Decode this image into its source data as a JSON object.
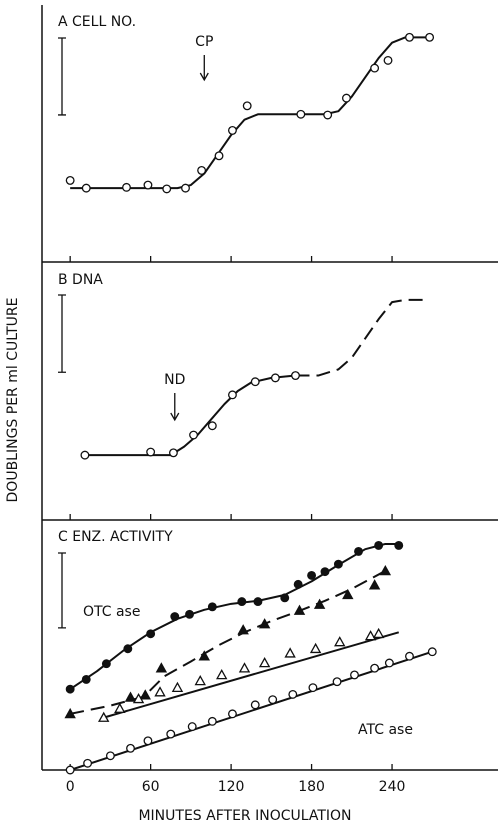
{
  "chart_data": [
    {
      "type": "scatter",
      "title": "A CELL NO.",
      "ylim": [
        0,
        3.34
      ],
      "scale_bar": 1,
      "annotations": [
        "CP"
      ],
      "series": [
        {
          "color": "#111",
          "marker": "open-circle",
          "x": [
            0,
            12,
            42,
            58,
            72,
            86,
            98,
            111,
            121,
            132,
            172,
            192,
            206,
            227,
            237,
            253,
            268
          ],
          "values": [
            1.06,
            0.96,
            0.97,
            1.0,
            0.95,
            0.96,
            1.19,
            1.38,
            1.71,
            2.03,
            1.92,
            1.91,
            2.13,
            2.52,
            2.62,
            2.92,
            2.92
          ],
          "fits": [
            {
              "style": "solid",
              "x": [
                0,
                80,
                90,
                100,
                110,
                120,
                130,
                140,
                190,
                200,
                210,
                220,
                230,
                240,
                250,
                268
              ],
              "values": [
                0.96,
                0.96,
                1.0,
                1.15,
                1.4,
                1.65,
                1.85,
                1.92,
                1.92,
                1.96,
                2.15,
                2.4,
                2.65,
                2.85,
                2.92,
                2.92
              ]
            }
          ]
        }
      ]
    },
    {
      "type": "scatter",
      "title": "B DNA",
      "ylim": [
        0,
        3.34
      ],
      "scale_bar": 1,
      "ylabel": "DOUBLINGS PER ml CULTURE",
      "annotations": [
        "ND"
      ],
      "series": [
        {
          "color": "#111",
          "marker": "open-circle",
          "x": [
            11,
            60,
            77,
            92,
            106,
            121,
            138,
            153,
            168
          ],
          "values": [
            0.84,
            0.88,
            0.87,
            1.1,
            1.22,
            1.62,
            1.79,
            1.84,
            1.87
          ],
          "fits": [
            {
              "style": "solid",
              "x": [
                11,
                75,
                85,
                95,
                105,
                115,
                125,
                135,
                150,
                168
              ],
              "values": [
                0.84,
                0.84,
                0.95,
                1.1,
                1.3,
                1.5,
                1.67,
                1.78,
                1.84,
                1.87
              ]
            },
            {
              "style": "dashed",
              "x": [
                168,
                185,
                200,
                210,
                220,
                230,
                240,
                250,
                268
              ],
              "values": [
                1.87,
                1.87,
                1.95,
                2.1,
                2.35,
                2.6,
                2.82,
                2.85,
                2.85
              ]
            }
          ]
        }
      ]
    },
    {
      "type": "scatter",
      "title": "C ENZ. ACTIVITY",
      "ylim": [
        0,
        3.34
      ],
      "scale_bar": 1,
      "xlabel": "MINUTES AFTER INOCULATION",
      "xlim": [
        -21,
        319
      ],
      "xticks": [
        0,
        60,
        120,
        180,
        240
      ],
      "series": [
        {
          "name": "OTC ase",
          "color": "#111",
          "marker": "filled-circle",
          "x": [
            0,
            12,
            27,
            43,
            60,
            78,
            89,
            106,
            128,
            140,
            160,
            170,
            180,
            190,
            200,
            215,
            230,
            245
          ],
          "values": [
            1.08,
            1.21,
            1.42,
            1.62,
            1.82,
            2.05,
            2.08,
            2.18,
            2.25,
            2.25,
            2.3,
            2.48,
            2.6,
            2.65,
            2.75,
            2.92,
            3.0,
            3.0
          ],
          "fits": [
            {
              "style": "solid",
              "x": [
                0,
                20,
                40,
                60,
                80,
                100,
                120,
                140,
                160,
                180,
                200,
                220,
                235,
                245
              ],
              "values": [
                1.08,
                1.32,
                1.6,
                1.84,
                2.02,
                2.14,
                2.22,
                2.26,
                2.34,
                2.52,
                2.74,
                2.95,
                3.02,
                3.02
              ]
            }
          ]
        },
        {
          "color": "#111",
          "marker": "filled-triangle",
          "x": [
            0,
            45,
            56,
            68,
            100,
            129,
            145,
            171,
            186,
            207,
            227,
            235
          ],
          "values": [
            0.75,
            0.97,
            1.0,
            1.36,
            1.52,
            1.87,
            1.95,
            2.13,
            2.21,
            2.34,
            2.47,
            2.66
          ],
          "fits": [
            {
              "style": "dashed",
              "x": [
                0,
                30,
                55,
                70,
                90,
                110,
                130,
                150,
                170,
                190,
                210,
                235
              ],
              "values": [
                0.75,
                0.86,
                0.98,
                1.25,
                1.45,
                1.66,
                1.84,
                1.99,
                2.12,
                2.26,
                2.42,
                2.66
              ]
            }
          ]
        },
        {
          "color": "#111",
          "marker": "open-triangle",
          "x": [
            25,
            37,
            51,
            67,
            80,
            97,
            113,
            130,
            145,
            164,
            183,
            201,
            224,
            230
          ],
          "values": [
            0.7,
            0.82,
            0.95,
            1.04,
            1.1,
            1.19,
            1.27,
            1.36,
            1.43,
            1.56,
            1.62,
            1.71,
            1.79,
            1.82
          ],
          "fits": [
            {
              "style": "solid",
              "x": [
                25,
                245
              ],
              "values": [
                0.7,
                1.84
              ]
            }
          ]
        },
        {
          "name": "ATC ase",
          "color": "#111",
          "marker": "open-circle",
          "x": [
            0,
            13,
            30,
            45,
            58,
            75,
            91,
            106,
            121,
            138,
            151,
            166,
            181,
            199,
            212,
            227,
            238,
            253,
            270
          ],
          "values": [
            0,
            0.09,
            0.19,
            0.29,
            0.39,
            0.48,
            0.58,
            0.65,
            0.75,
            0.87,
            0.94,
            1.01,
            1.1,
            1.18,
            1.27,
            1.36,
            1.43,
            1.52,
            1.58
          ],
          "fits": [
            {
              "style": "solid",
              "x": [
                0,
                270
              ],
              "values": [
                0,
                1.58
              ]
            }
          ]
        }
      ]
    }
  ]
}
